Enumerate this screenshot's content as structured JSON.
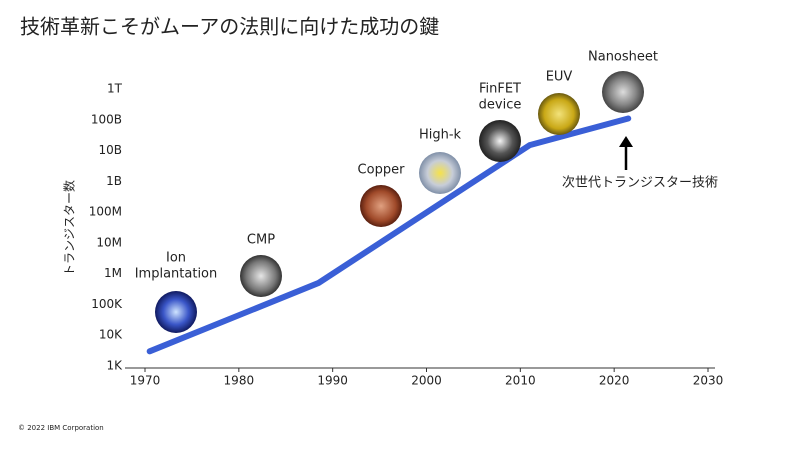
{
  "chart_data": {
    "type": "line",
    "title": "技術革新こそがムーアの法則に向けた成功の鍵",
    "y_label": "トランジスター数",
    "x": [
      1970.5,
      1988.5,
      2011,
      2021.5
    ],
    "values": [
      3000,
      500000,
      15000000000,
      110000000000
    ],
    "color": "#3a5fd6",
    "log_scale": true,
    "xlim": [
      1970,
      2030
    ],
    "xticks": [
      1970,
      1980,
      1990,
      2000,
      2010,
      2020,
      2030
    ],
    "ylim": [
      1000,
      1000000000000
    ],
    "yticks": [
      {
        "value": 1000,
        "label": "1K"
      },
      {
        "value": 10000,
        "label": "10K"
      },
      {
        "value": 100000,
        "label": "100K"
      },
      {
        "value": 1000000,
        "label": "1M"
      },
      {
        "value": 10000000,
        "label": "10M"
      },
      {
        "value": 100000000,
        "label": "100M"
      },
      {
        "value": 1000000000,
        "label": "1B"
      },
      {
        "value": 10000000000,
        "label": "10B"
      },
      {
        "value": 100000000000,
        "label": "100B"
      },
      {
        "value": 1000000000000,
        "label": "1T"
      }
    ],
    "annotations": [
      [
        "Ion",
        "Implantation"
      ],
      [
        "CMP"
      ],
      [
        "Copper"
      ],
      [
        "High-k"
      ],
      [
        "FinFET",
        "device"
      ],
      [
        "EUV"
      ],
      [
        "Nanosheet"
      ]
    ],
    "arrow_note": "次世代トランジスター技術"
  },
  "footer": "© 2022 IBM Corporation"
}
